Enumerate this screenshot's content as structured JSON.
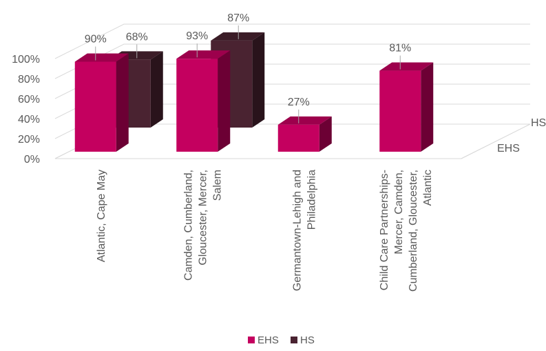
{
  "chart_data": {
    "type": "bar",
    "categories": [
      [
        "Atlantic, Cape May"
      ],
      [
        "Camden, Cumberland,",
        "Gloucester, Mercer,",
        "Salem"
      ],
      [
        "Germantown-Lehigh and",
        "Philadelphia"
      ],
      [
        "Child Care Partnerships-",
        "Mercer, Camden,",
        "Cumberland, Gloucester,",
        "Atlantic"
      ]
    ],
    "series": [
      {
        "name": "EHS",
        "values": [
          90,
          93,
          27,
          81
        ],
        "labels": [
          "90%",
          "93%",
          "27%",
          "81%"
        ]
      },
      {
        "name": "HS",
        "values": [
          68,
          87,
          null,
          null
        ],
        "labels": [
          "68%",
          "87%",
          "",
          ""
        ]
      }
    ],
    "yticks": [
      "0%",
      "20%",
      "40%",
      "60%",
      "80%",
      "100%"
    ],
    "ylim": [
      0,
      100
    ],
    "depth_labels": [
      "EHS",
      "HS"
    ],
    "grid": true,
    "legend": "bottom",
    "colors": {
      "EHS": "#C4005F",
      "HS": "#4A2331",
      "gridline": "#d9d9d9",
      "text": "#595959"
    }
  }
}
